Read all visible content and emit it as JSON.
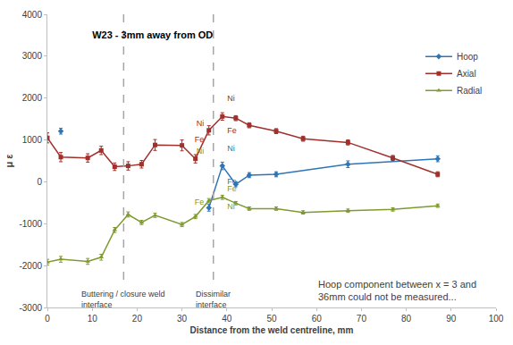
{
  "chart_data": {
    "type": "line",
    "title": "W23 - 3mm away from OD",
    "x_label": "Distance from the weld centreline, mm",
    "y_label": "μ ε",
    "xlim": [
      0,
      100
    ],
    "xticks": [
      0,
      10,
      20,
      30,
      40,
      50,
      60,
      70,
      80,
      90,
      100
    ],
    "ylim": [
      -3000,
      4000
    ],
    "yticks": [
      -3000,
      -2000,
      -1000,
      0,
      1000,
      2000,
      3000,
      4000
    ],
    "grid": false,
    "legend": "upper right",
    "series": [
      {
        "name": "Hoop",
        "color": "#2e75b6",
        "marker": "diamond",
        "x": [
          3,
          null,
          36,
          39,
          42,
          45,
          51,
          67,
          87
        ],
        "values": [
          1210,
          null,
          -620,
          380,
          -60,
          160,
          180,
          420,
          550
        ],
        "errors": [
          70,
          null,
          80,
          90,
          60,
          60,
          60,
          80,
          70
        ]
      },
      {
        "name": "Axial",
        "color": "#a0302c",
        "marker": "square",
        "x": [
          0,
          3,
          9,
          12,
          15,
          18,
          21,
          24,
          30,
          33,
          36,
          39,
          42,
          45,
          51,
          57,
          67,
          77,
          87
        ],
        "values": [
          1050,
          590,
          570,
          750,
          360,
          380,
          420,
          880,
          870,
          550,
          1230,
          1560,
          1520,
          1350,
          1210,
          1030,
          940,
          570,
          180
        ],
        "errors": [
          120,
          110,
          100,
          100,
          90,
          100,
          90,
          130,
          130,
          100,
          110,
          90,
          60,
          60,
          60,
          60,
          60,
          60,
          60
        ]
      },
      {
        "name": "Radial",
        "color": "#7f9a2e",
        "marker": "triangle",
        "x": [
          0,
          3,
          9,
          12,
          15,
          18,
          21,
          24,
          30,
          33,
          36,
          39,
          42,
          45,
          51,
          57,
          67,
          77,
          87
        ],
        "values": [
          -1920,
          -1850,
          -1900,
          -1800,
          -1150,
          -780,
          -970,
          -800,
          -1020,
          -830,
          -450,
          -370,
          -510,
          -640,
          -640,
          -730,
          -690,
          -660,
          -570
        ],
        "errors": [
          70,
          70,
          70,
          70,
          60,
          60,
          50,
          50,
          50,
          50,
          50,
          50,
          40,
          40,
          40,
          40,
          40,
          40,
          40
        ]
      }
    ],
    "reference_points": [
      {
        "series": "Axial",
        "label": "Ni",
        "x": 39,
        "y": 1980
      },
      {
        "series": "Axial",
        "label": "Fe",
        "x": 39,
        "y": 1200
      },
      {
        "series": "Axial",
        "label": "Ni",
        "x": 36,
        "y": 1370
      },
      {
        "series": "Axial",
        "label": "Fe",
        "x": 36,
        "y": 1000
      },
      {
        "series": "Hoop",
        "label": "Ni",
        "x": 39,
        "y": 780
      },
      {
        "series": "Hoop",
        "label": "Fe",
        "x": 39,
        "y": 0
      },
      {
        "series": "Radial",
        "label": "Ni",
        "x": 36,
        "y": 720
      },
      {
        "series": "Radial",
        "label": "Fe",
        "x": 36,
        "y": -500
      },
      {
        "series": "Radial",
        "label": "Fe",
        "x": 39,
        "y": -170
      },
      {
        "series": "Radial",
        "label": "Ni",
        "x": 39,
        "y": -600
      }
    ],
    "vlines": [
      {
        "x": 17,
        "y_end": -2450,
        "label": [
          "Buttering / closure weld",
          "interface"
        ]
      },
      {
        "x": 37,
        "y_end": -2450,
        "label": [
          "Dissimilar",
          "interface"
        ]
      }
    ],
    "note": {
      "x": 78,
      "y": -2600,
      "lines": [
        "Hoop component between x = 3 and",
        "36mm could not be measured..."
      ]
    }
  }
}
